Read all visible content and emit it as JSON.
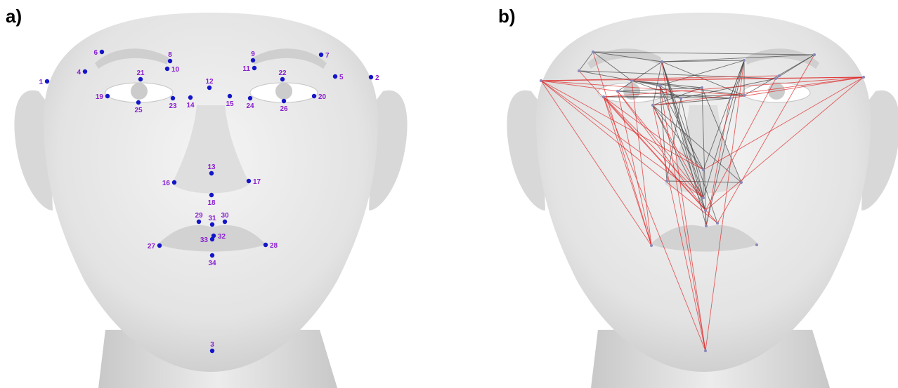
{
  "panels": {
    "a": {
      "letter": "a)"
    },
    "b": {
      "letter": "b)"
    }
  },
  "colors": {
    "landmark_dot": "#1414c8",
    "landmark_label": "#8a1fd0",
    "edge_gray": "#444444",
    "edge_red": "#e02020",
    "face_skin": "#e6e6e6"
  },
  "landmarks": [
    {
      "label": "1"
    },
    {
      "label": "2"
    },
    {
      "label": "3"
    },
    {
      "label": "4"
    },
    {
      "label": "5"
    },
    {
      "label": "6"
    },
    {
      "label": "7"
    },
    {
      "label": "8"
    },
    {
      "label": "9"
    },
    {
      "label": "10"
    },
    {
      "label": "11"
    },
    {
      "label": "12"
    },
    {
      "label": "13"
    },
    {
      "label": "14"
    },
    {
      "label": "15"
    },
    {
      "label": "16"
    },
    {
      "label": "17"
    },
    {
      "label": "18"
    },
    {
      "label": "19"
    },
    {
      "label": "20"
    },
    {
      "label": "21"
    },
    {
      "label": "22"
    },
    {
      "label": "23"
    },
    {
      "label": "24"
    },
    {
      "label": "25"
    },
    {
      "label": "26"
    },
    {
      "label": "27"
    },
    {
      "label": "28"
    },
    {
      "label": "29"
    },
    {
      "label": "30"
    },
    {
      "label": "31"
    },
    {
      "label": "32"
    },
    {
      "label": "33"
    },
    {
      "label": "34"
    }
  ]
}
